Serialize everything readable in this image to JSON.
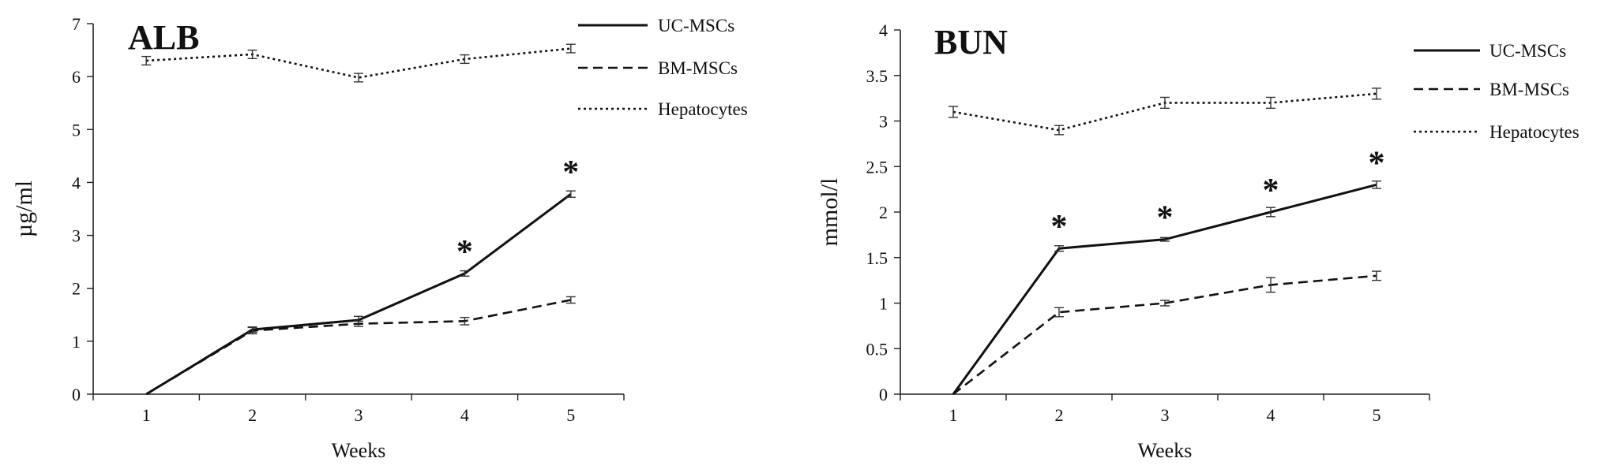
{
  "chart_data": [
    {
      "type": "line",
      "title": "ALB",
      "xlabel": "Weeks",
      "ylabel": "µg/ml",
      "x": [
        1,
        2,
        3,
        4,
        5
      ],
      "ylim": [
        0,
        7
      ],
      "yticks": [
        0,
        1,
        2,
        3,
        4,
        5,
        6,
        7
      ],
      "legend_position": "top-right",
      "series": [
        {
          "name": "UC-MSCs",
          "style": "solid",
          "values": [
            0,
            1.22,
            1.4,
            2.28,
            3.78
          ],
          "errors": [
            0,
            0.05,
            0.07,
            0.05,
            0.06
          ]
        },
        {
          "name": "BM-MSCs",
          "style": "dashed",
          "values": [
            0,
            1.2,
            1.33,
            1.38,
            1.78
          ],
          "errors": [
            0,
            0.06,
            0.05,
            0.07,
            0.06
          ]
        },
        {
          "name": "Hepatocytes",
          "style": "dotted",
          "values": [
            6.3,
            6.42,
            5.98,
            6.33,
            6.53
          ],
          "errors": [
            0.08,
            0.08,
            0.08,
            0.08,
            0.08
          ]
        }
      ],
      "annotations": [
        {
          "text": "*",
          "x": 4,
          "y": 2.28
        },
        {
          "text": "*",
          "x": 5,
          "y": 3.78
        }
      ]
    },
    {
      "type": "line",
      "title": "BUN",
      "xlabel": "Weeks",
      "ylabel": "mmol/l",
      "x": [
        1,
        2,
        3,
        4,
        5
      ],
      "ylim": [
        0,
        4
      ],
      "yticks": [
        0,
        0.5,
        1,
        1.5,
        2,
        2.5,
        3,
        3.5,
        4
      ],
      "legend_position": "top-right",
      "series": [
        {
          "name": "UC-MSCs",
          "style": "solid",
          "values": [
            0,
            1.6,
            1.7,
            2.0,
            2.3
          ],
          "errors": [
            0,
            0.03,
            0.02,
            0.05,
            0.04
          ]
        },
        {
          "name": "BM-MSCs",
          "style": "dashed",
          "values": [
            0,
            0.9,
            1.0,
            1.2,
            1.3
          ],
          "errors": [
            0,
            0.05,
            0.03,
            0.08,
            0.05
          ]
        },
        {
          "name": "Hepatocytes",
          "style": "dotted",
          "values": [
            3.1,
            2.9,
            3.2,
            3.2,
            3.3
          ],
          "errors": [
            0.06,
            0.05,
            0.06,
            0.06,
            0.06
          ]
        }
      ],
      "annotations": [
        {
          "text": "*",
          "x": 2,
          "y": 1.6
        },
        {
          "text": "*",
          "x": 3,
          "y": 1.7
        },
        {
          "text": "*",
          "x": 4,
          "y": 2.0
        },
        {
          "text": "*",
          "x": 5,
          "y": 2.3
        }
      ]
    }
  ]
}
